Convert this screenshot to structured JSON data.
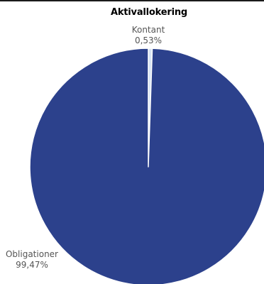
{
  "chart_data": {
    "type": "pie",
    "title": "Aktivallokering",
    "slices": [
      {
        "label": "Kontant",
        "value": 0.53,
        "value_label": "0,53%",
        "color": "#d6e3f3"
      },
      {
        "label": "Obligationer",
        "value": 99.47,
        "value_label": "99,47%",
        "color": "#2c418c"
      }
    ]
  }
}
